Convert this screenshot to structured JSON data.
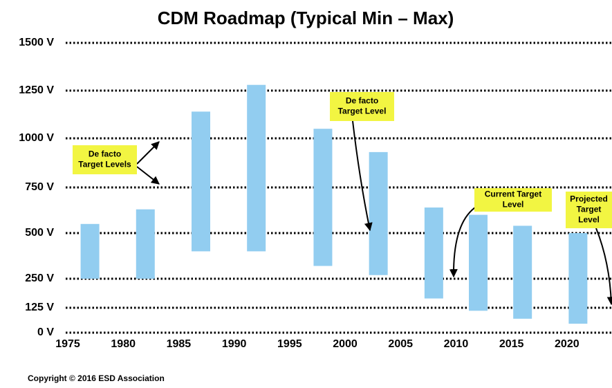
{
  "chart_data": {
    "type": "bar",
    "title": "CDM Roadmap (Typical Min – Max)",
    "x": [
      1977,
      1982,
      1987,
      1992,
      1998,
      2003,
      2008,
      2012,
      2016,
      2021
    ],
    "low": [
      250,
      250,
      400,
      400,
      320,
      270,
      165,
      110,
      70,
      45
    ],
    "high": [
      550,
      630,
      1140,
      1280,
      1050,
      930,
      640,
      600,
      540,
      500
    ],
    "color": "#92cdf0",
    "xlim": [
      1975,
      2024
    ],
    "xticks": [
      1975,
      1980,
      1985,
      1990,
      1995,
      2000,
      2005,
      2010,
      2015,
      2020
    ],
    "ylim": [
      0,
      1500
    ],
    "yticks": [
      {
        "value": 0,
        "label": "0 V"
      },
      {
        "value": 125,
        "label": "125 V"
      },
      {
        "value": 250,
        "label": "250 V"
      },
      {
        "value": 500,
        "label": "500 V"
      },
      {
        "value": 750,
        "label": "750 V"
      },
      {
        "value": 1000,
        "label": "1000 V"
      },
      {
        "value": 1250,
        "label": "1250 V"
      },
      {
        "value": 1500,
        "label": "1500 V"
      }
    ],
    "grid": true,
    "annotations": [
      {
        "lines": [
          "De facto",
          "Target Levels"
        ]
      },
      {
        "lines": [
          "De facto",
          "Target Level"
        ]
      },
      {
        "lines": [
          "Current Target",
          "Level"
        ]
      },
      {
        "lines": [
          "Projected",
          "Target",
          "Level"
        ]
      }
    ],
    "copyright": "Copyright © 2016 ESD Association"
  }
}
